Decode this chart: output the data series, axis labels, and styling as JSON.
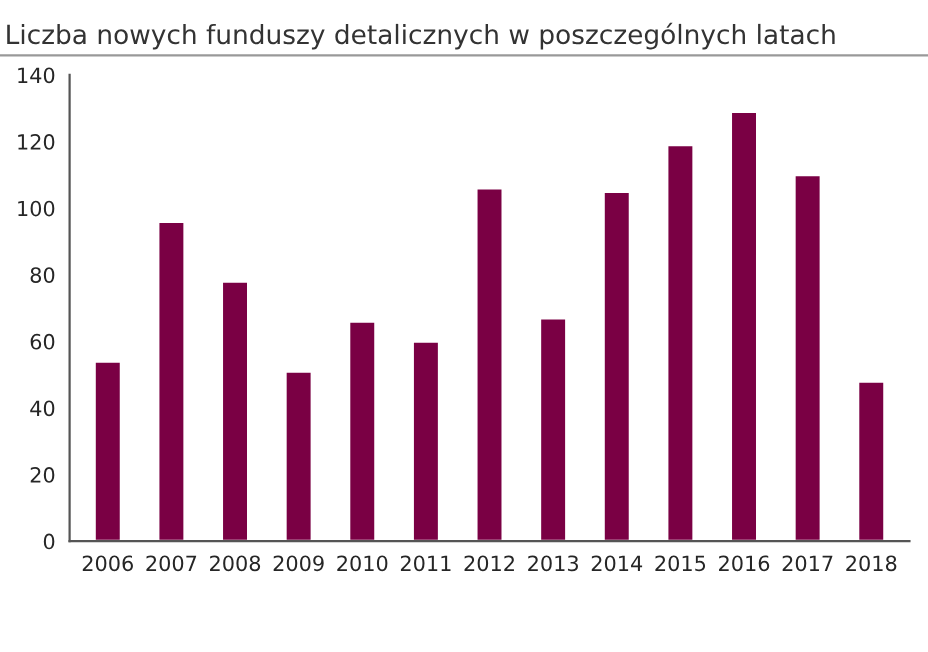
{
  "chart_data": {
    "type": "bar",
    "title": "Liczba nowych funduszy detalicznych w poszczególnych latach",
    "categories": [
      "2006",
      "2007",
      "2008",
      "2009",
      "2010",
      "2011",
      "2012",
      "2013",
      "2014",
      "2015",
      "2016",
      "2017",
      "2018"
    ],
    "values": [
      54,
      96,
      78,
      51,
      66,
      60,
      106,
      67,
      105,
      119,
      129,
      110,
      48
    ],
    "color": "#7a0044",
    "ylim": [
      0,
      140
    ],
    "yticks": [
      0,
      20,
      40,
      60,
      80,
      100,
      120,
      140
    ],
    "grid": false
  }
}
